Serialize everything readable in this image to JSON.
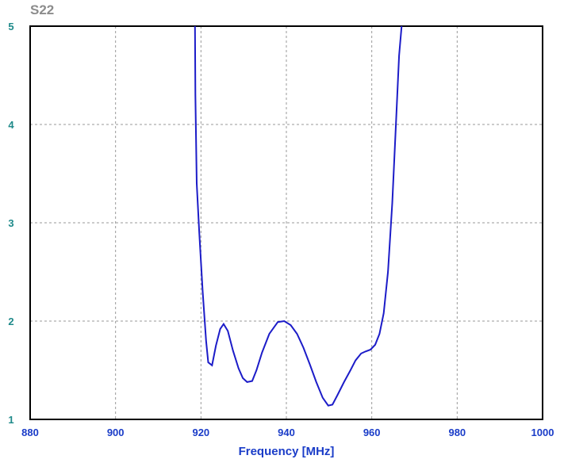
{
  "chart_data": {
    "type": "line",
    "title": "S22",
    "xlabel": "Frequency [MHz]",
    "ylabel": "",
    "xlim": [
      880,
      1000
    ],
    "ylim": [
      1,
      5
    ],
    "x_ticks": [
      "880",
      "900",
      "920",
      "940",
      "960",
      "980",
      "1000"
    ],
    "y_ticks": [
      "1",
      "2",
      "3",
      "4",
      "5"
    ],
    "grid": true,
    "series": [
      {
        "line_color": "#1c1cc8",
        "points": [
          [
            918.6,
            5.0
          ],
          [
            918.7,
            4.3
          ],
          [
            919.0,
            3.4
          ],
          [
            919.6,
            2.9
          ],
          [
            920.4,
            2.3
          ],
          [
            921.2,
            1.8
          ],
          [
            921.7,
            1.58
          ],
          [
            922.6,
            1.55
          ],
          [
            923.5,
            1.75
          ],
          [
            924.5,
            1.92
          ],
          [
            925.3,
            1.97
          ],
          [
            926.3,
            1.9
          ],
          [
            927.5,
            1.7
          ],
          [
            928.8,
            1.52
          ],
          [
            929.8,
            1.42
          ],
          [
            930.8,
            1.38
          ],
          [
            932.0,
            1.39
          ],
          [
            933.0,
            1.5
          ],
          [
            934.3,
            1.68
          ],
          [
            936.0,
            1.87
          ],
          [
            938.0,
            1.99
          ],
          [
            939.5,
            2.0
          ],
          [
            941.0,
            1.96
          ],
          [
            942.5,
            1.87
          ],
          [
            944.0,
            1.73
          ],
          [
            945.5,
            1.56
          ],
          [
            947.0,
            1.38
          ],
          [
            948.5,
            1.22
          ],
          [
            949.8,
            1.14
          ],
          [
            950.8,
            1.15
          ],
          [
            952.0,
            1.25
          ],
          [
            953.5,
            1.38
          ],
          [
            955.0,
            1.5
          ],
          [
            956.2,
            1.6
          ],
          [
            957.5,
            1.67
          ],
          [
            958.5,
            1.69
          ],
          [
            959.7,
            1.71
          ],
          [
            960.8,
            1.76
          ],
          [
            961.8,
            1.87
          ],
          [
            962.8,
            2.08
          ],
          [
            963.8,
            2.5
          ],
          [
            964.8,
            3.2
          ],
          [
            965.7,
            4.05
          ],
          [
            966.4,
            4.7
          ],
          [
            967.0,
            5.0
          ]
        ]
      }
    ]
  },
  "colors": {
    "curve": "#1c1cc8",
    "y_tick_color": "#1f8a8a",
    "x_tick_color": "#1a3cc8",
    "title_color": "#8c8c8c"
  }
}
